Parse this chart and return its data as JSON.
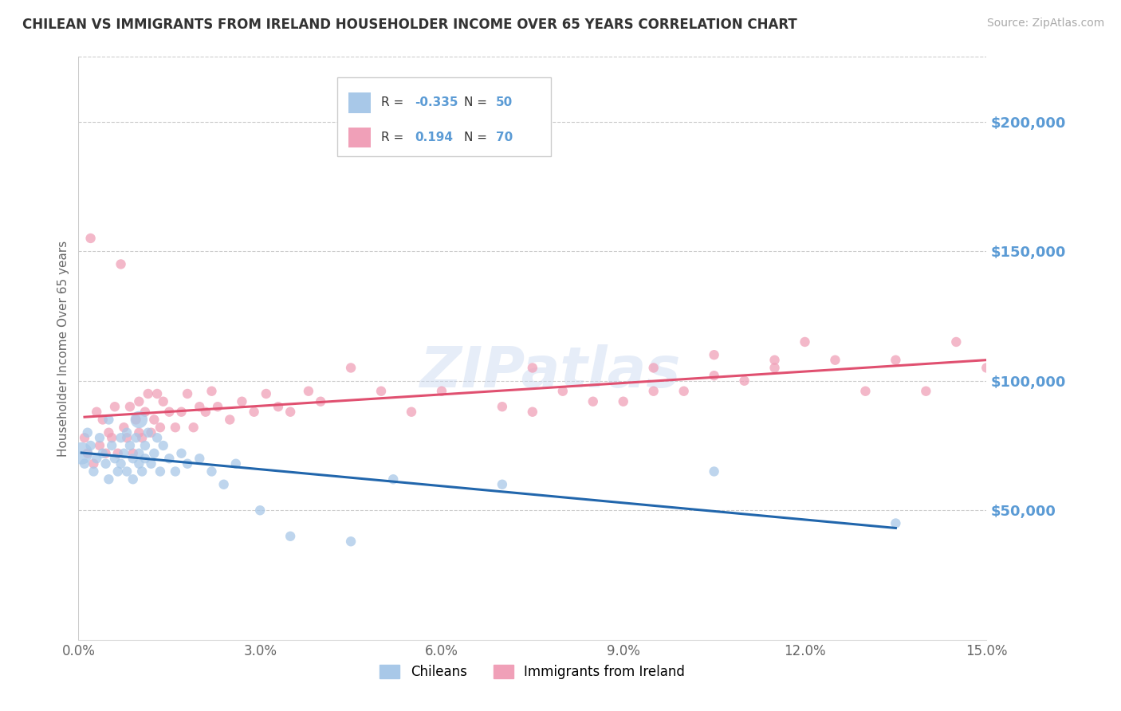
{
  "title": "CHILEAN VS IMMIGRANTS FROM IRELAND HOUSEHOLDER INCOME OVER 65 YEARS CORRELATION CHART",
  "source": "Source: ZipAtlas.com",
  "ylabel": "Householder Income Over 65 years",
  "xlim": [
    0.0,
    15.0
  ],
  "ylim": [
    0,
    225000
  ],
  "yticks": [
    0,
    50000,
    100000,
    150000,
    200000
  ],
  "ytick_labels": [
    "",
    "$50,000",
    "$100,000",
    "$150,000",
    "$200,000"
  ],
  "blue_color": "#a8c8e8",
  "pink_color": "#f0a0b8",
  "blue_line_color": "#2166ac",
  "pink_line_color": "#e05070",
  "title_color": "#333333",
  "axis_color": "#5b9bd5",
  "watermark": "ZIPatlas",
  "chilean_x": [
    0.05,
    0.1,
    0.15,
    0.2,
    0.25,
    0.3,
    0.35,
    0.4,
    0.45,
    0.5,
    0.5,
    0.55,
    0.6,
    0.65,
    0.7,
    0.7,
    0.75,
    0.8,
    0.8,
    0.85,
    0.9,
    0.9,
    0.95,
    1.0,
    1.0,
    1.0,
    1.05,
    1.1,
    1.1,
    1.15,
    1.2,
    1.25,
    1.3,
    1.35,
    1.4,
    1.5,
    1.6,
    1.7,
    1.8,
    2.0,
    2.2,
    2.4,
    2.6,
    3.0,
    3.5,
    4.5,
    5.2,
    7.0,
    10.5,
    13.5
  ],
  "chilean_y": [
    72000,
    68000,
    80000,
    75000,
    65000,
    70000,
    78000,
    72000,
    68000,
    85000,
    62000,
    75000,
    70000,
    65000,
    78000,
    68000,
    72000,
    80000,
    65000,
    75000,
    70000,
    62000,
    78000,
    85000,
    72000,
    68000,
    65000,
    75000,
    70000,
    80000,
    68000,
    72000,
    78000,
    65000,
    75000,
    70000,
    65000,
    72000,
    68000,
    70000,
    65000,
    60000,
    68000,
    50000,
    40000,
    38000,
    62000,
    60000,
    65000,
    45000
  ],
  "chilean_size": [
    200,
    40,
    40,
    40,
    40,
    40,
    40,
    40,
    40,
    40,
    40,
    40,
    40,
    40,
    40,
    40,
    40,
    40,
    40,
    40,
    40,
    40,
    40,
    120,
    40,
    40,
    40,
    40,
    40,
    40,
    40,
    40,
    40,
    40,
    40,
    40,
    40,
    40,
    40,
    40,
    40,
    40,
    40,
    40,
    40,
    40,
    40,
    40,
    40,
    40
  ],
  "ireland_x": [
    0.1,
    0.15,
    0.2,
    0.25,
    0.3,
    0.35,
    0.4,
    0.45,
    0.5,
    0.55,
    0.6,
    0.65,
    0.7,
    0.75,
    0.8,
    0.85,
    0.9,
    0.95,
    1.0,
    1.0,
    1.05,
    1.1,
    1.15,
    1.2,
    1.25,
    1.3,
    1.35,
    1.4,
    1.5,
    1.6,
    1.7,
    1.8,
    1.9,
    2.0,
    2.1,
    2.2,
    2.3,
    2.5,
    2.7,
    2.9,
    3.1,
    3.3,
    3.5,
    3.8,
    4.0,
    4.5,
    5.0,
    5.5,
    6.0,
    7.0,
    7.5,
    8.0,
    9.0,
    9.5,
    10.0,
    10.5,
    11.0,
    11.5,
    12.0,
    12.5,
    13.0,
    13.5,
    14.0,
    14.5,
    15.0,
    7.5,
    8.5,
    9.5,
    10.5,
    11.5
  ],
  "ireland_y": [
    78000,
    72000,
    155000,
    68000,
    88000,
    75000,
    85000,
    72000,
    80000,
    78000,
    90000,
    72000,
    145000,
    82000,
    78000,
    90000,
    72000,
    85000,
    80000,
    92000,
    78000,
    88000,
    95000,
    80000,
    85000,
    95000,
    82000,
    92000,
    88000,
    82000,
    88000,
    95000,
    82000,
    90000,
    88000,
    96000,
    90000,
    85000,
    92000,
    88000,
    95000,
    90000,
    88000,
    96000,
    92000,
    105000,
    96000,
    88000,
    96000,
    90000,
    105000,
    96000,
    92000,
    105000,
    96000,
    110000,
    100000,
    105000,
    115000,
    108000,
    96000,
    108000,
    96000,
    115000,
    105000,
    88000,
    92000,
    96000,
    102000,
    108000
  ],
  "ireland_size": [
    40,
    40,
    40,
    40,
    40,
    40,
    40,
    40,
    40,
    40,
    40,
    40,
    40,
    40,
    40,
    40,
    40,
    40,
    40,
    40,
    40,
    40,
    40,
    40,
    40,
    40,
    40,
    40,
    40,
    40,
    40,
    40,
    40,
    40,
    40,
    40,
    40,
    40,
    40,
    40,
    40,
    40,
    40,
    40,
    40,
    40,
    40,
    40,
    40,
    40,
    40,
    40,
    40,
    40,
    40,
    40,
    40,
    40,
    40,
    40,
    40,
    40,
    40,
    40,
    40,
    40,
    40,
    40,
    40,
    40
  ]
}
